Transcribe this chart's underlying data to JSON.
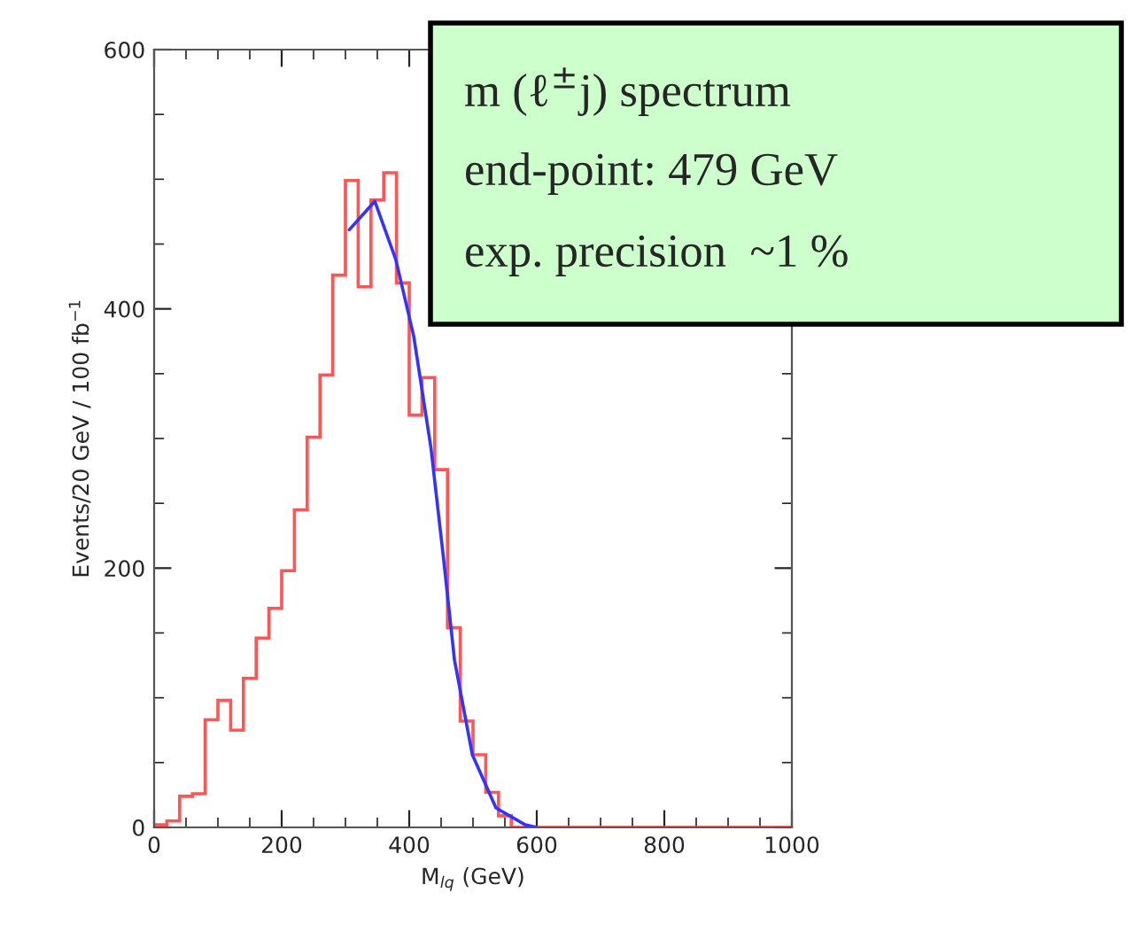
{
  "chart_data": {
    "type": "histogram",
    "xlabel": "M$_{lq}$ (GeV)",
    "ylabel": "Events/20 GeV / 100 fb$^{−1}$",
    "bins": [
      0,
      20,
      40,
      60,
      80,
      100,
      120,
      140,
      160,
      180,
      200,
      220,
      240,
      260,
      280,
      300,
      320,
      340,
      360,
      380,
      400,
      420,
      440,
      460,
      480,
      500,
      520,
      540,
      560,
      580,
      600,
      620,
      640,
      660,
      680,
      700,
      720,
      740,
      760,
      780,
      800,
      820,
      840,
      860,
      880,
      900,
      920,
      940,
      960,
      980,
      1000
    ],
    "series": [
      {
        "color": "#ff5555",
        "values": [
          2,
          5,
          24,
          26,
          83,
          98,
          75,
          115,
          146,
          169,
          198,
          245,
          301,
          349,
          426,
          499,
          417,
          484,
          505,
          420,
          318,
          347,
          276,
          154,
          82,
          56,
          27,
          9,
          0,
          0,
          0,
          0,
          0,
          0,
          0,
          0,
          0,
          0,
          0,
          0,
          0,
          0,
          0,
          0,
          0,
          0,
          0,
          0,
          0,
          0
        ]
      },
      {
        "type": "line",
        "color": "#3333ff",
        "x": [
          306,
          346,
          379,
          407,
          434,
          453,
          471,
          499,
          536,
          582,
          600
        ],
        "values": [
          461,
          483,
          438,
          379,
          293,
          211,
          129,
          56,
          15,
          2,
          0
        ]
      }
    ],
    "xlim": [
      0,
      1000
    ],
    "ylim": [
      0,
      600
    ],
    "xticks": [
      0,
      200,
      400,
      600,
      800,
      1000
    ],
    "yticks": [
      0,
      200,
      400,
      600
    ],
    "annotations": [
      "m (ℓ$^{±}$j) spectrum",
      "end-point: 479 GeV",
      "exp. precision  ~1 %"
    ]
  }
}
